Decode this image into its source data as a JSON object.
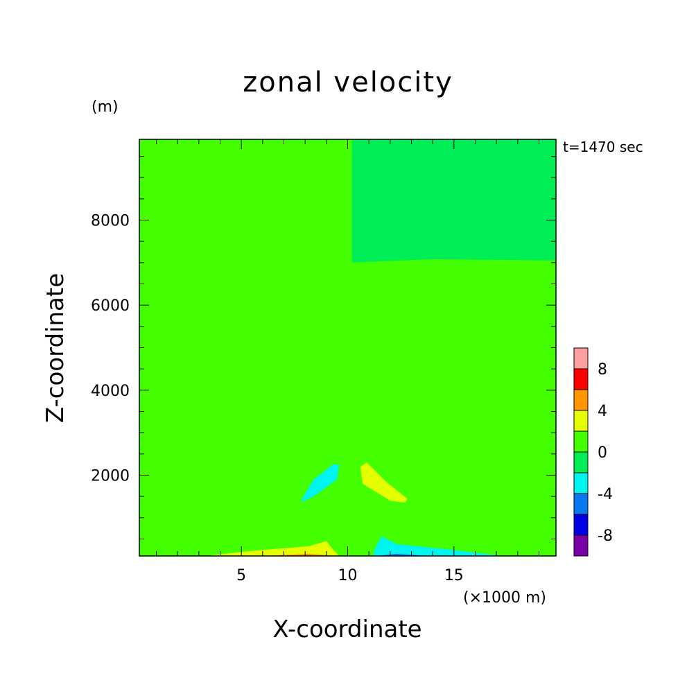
{
  "chart_data": {
    "type": "heatmap",
    "title": "zonal velocity",
    "xlabel": "X-coordinate",
    "ylabel": "Z-coordinate",
    "x_unit": "(×1000 m)",
    "y_unit": "(m)",
    "time_label": "t=1470 sec",
    "xlim": [
      0.2,
      19.8
    ],
    "ylim": [
      100,
      9900
    ],
    "x_ticks": [
      5,
      10,
      15
    ],
    "y_ticks": [
      2000,
      4000,
      6000,
      8000
    ],
    "colorbar": {
      "levels": [
        -10,
        -8,
        -6,
        -4,
        -2,
        0,
        2,
        4,
        6,
        8,
        10
      ],
      "colors": [
        "#7a00aa",
        "#0000e6",
        "#0a78f0",
        "#00f5f0",
        "#00ee55",
        "#44ff00",
        "#e6ff00",
        "#ff9600",
        "#ff0000",
        "#ffa0a0"
      ],
      "tick_labels": [
        "-8",
        "-4",
        "0",
        "4",
        "8"
      ],
      "tick_values": [
        -8,
        -4,
        0,
        4,
        8
      ]
    },
    "background_value": 0.5,
    "regions": [
      {
        "name": "upper-left",
        "value": 1,
        "points": [
          [
            0.2,
            9900
          ],
          [
            10.2,
            9900
          ],
          [
            10.2,
            7000
          ],
          [
            6,
            7050
          ],
          [
            0.2,
            7080
          ]
        ]
      },
      {
        "name": "upper-right",
        "value": -1,
        "points": [
          [
            10.2,
            9900
          ],
          [
            19.8,
            9900
          ],
          [
            19.8,
            7050
          ],
          [
            14,
            7080
          ],
          [
            10.2,
            7000
          ]
        ]
      },
      {
        "name": "left-tongue",
        "value": 1,
        "points": [
          [
            0.2,
            3700
          ],
          [
            3,
            3650
          ],
          [
            5.5,
            3500
          ],
          [
            8.2,
            3400
          ],
          [
            8.4,
            3200
          ],
          [
            7.5,
            2850
          ],
          [
            5.2,
            2450
          ],
          [
            3,
            2130
          ],
          [
            2.2,
            1980
          ],
          [
            0.2,
            1950
          ]
        ]
      },
      {
        "name": "right-tongue",
        "value": 1,
        "points": [
          [
            19.8,
            3700
          ],
          [
            17,
            3650
          ],
          [
            14.5,
            3520
          ],
          [
            12.5,
            3400
          ],
          [
            12,
            3200
          ],
          [
            12.7,
            2850
          ],
          [
            14.7,
            2450
          ],
          [
            17,
            2120
          ],
          [
            17.8,
            1980
          ],
          [
            19.8,
            1950
          ]
        ]
      },
      {
        "name": "low-left",
        "value": 1,
        "points": [
          [
            0.2,
            850
          ],
          [
            1.8,
            820
          ],
          [
            2.5,
            600
          ],
          [
            5,
            520
          ],
          [
            8,
            560
          ],
          [
            8.5,
            700
          ],
          [
            9.4,
            720
          ],
          [
            9.3,
            500
          ],
          [
            8.8,
            200
          ],
          [
            5,
            200
          ],
          [
            0.2,
            230
          ]
        ]
      },
      {
        "name": "low-right",
        "value": 1,
        "points": [
          [
            19.8,
            850
          ],
          [
            18.4,
            830
          ],
          [
            17.8,
            620
          ],
          [
            15.5,
            560
          ],
          [
            12.8,
            600
          ],
          [
            12.5,
            850
          ],
          [
            11.3,
            900
          ],
          [
            11.4,
            400
          ],
          [
            12,
            300
          ],
          [
            16,
            200
          ],
          [
            19.8,
            200
          ]
        ]
      },
      {
        "name": "bottom-left-2",
        "value": 3,
        "points": [
          [
            3.3,
            100
          ],
          [
            5.5,
            220
          ],
          [
            8.2,
            330
          ],
          [
            9,
            450
          ],
          [
            9.3,
            260
          ],
          [
            9.6,
            100
          ]
        ]
      },
      {
        "name": "bottom-left-4",
        "value": 5,
        "points": [
          [
            6,
            100
          ],
          [
            8.2,
            150
          ],
          [
            9,
            120
          ],
          [
            9.4,
            100
          ]
        ]
      },
      {
        "name": "bottom-right-m2",
        "value": -3,
        "points": [
          [
            11.2,
            100
          ],
          [
            11.3,
            300
          ],
          [
            11.6,
            560
          ],
          [
            12.3,
            380
          ],
          [
            14.8,
            250
          ],
          [
            17,
            120
          ],
          [
            17.3,
            100
          ]
        ]
      },
      {
        "name": "bottom-right-m4",
        "value": -5,
        "points": [
          [
            11.3,
            100
          ],
          [
            12.3,
            150
          ],
          [
            13.8,
            100
          ]
        ]
      },
      {
        "name": "cell-left",
        "value": -3,
        "points": [
          [
            7.8,
            1400
          ],
          [
            8.4,
            1900
          ],
          [
            9.3,
            2250
          ],
          [
            9.6,
            2250
          ],
          [
            9.5,
            1900
          ],
          [
            8.4,
            1500
          ],
          [
            7.9,
            1380
          ]
        ]
      },
      {
        "name": "cell-right",
        "value": 3,
        "points": [
          [
            10.6,
            2200
          ],
          [
            10.9,
            2300
          ],
          [
            11.8,
            1850
          ],
          [
            12.8,
            1450
          ],
          [
            12.7,
            1350
          ],
          [
            12,
            1400
          ],
          [
            10.7,
            1800
          ]
        ]
      }
    ]
  }
}
